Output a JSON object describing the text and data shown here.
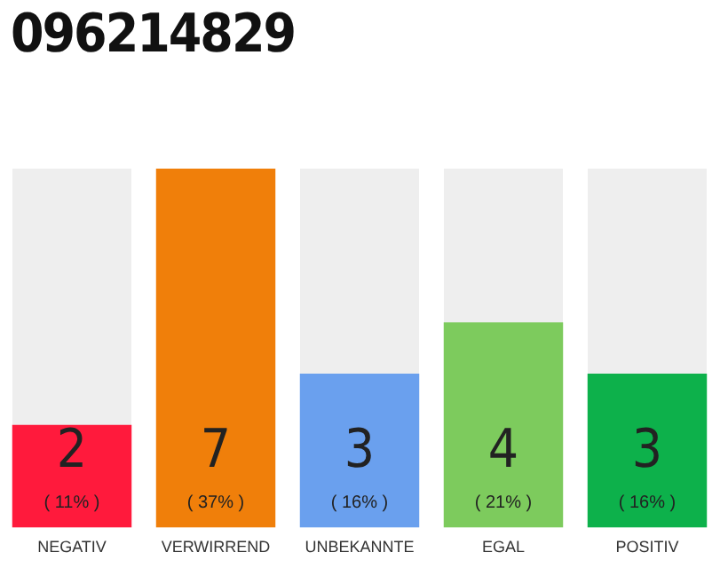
{
  "chart_data": {
    "type": "bar",
    "title": "096214829",
    "categories": [
      "NEGATIV",
      "VERWIRREND",
      "UNBEKANNTE",
      "EGAL",
      "POSITIV"
    ],
    "values": [
      2,
      7,
      3,
      4,
      3
    ],
    "colors": [
      "#ff1a3c",
      "#f07f0a",
      "#6aa0ee",
      "#7dcb5d",
      "#0db14b"
    ],
    "data_labels": true,
    "annotations": [
      "( 11% )",
      "( 37% )",
      "( 16% )",
      "( 21% )",
      "( 16% )"
    ],
    "grid": false
  }
}
